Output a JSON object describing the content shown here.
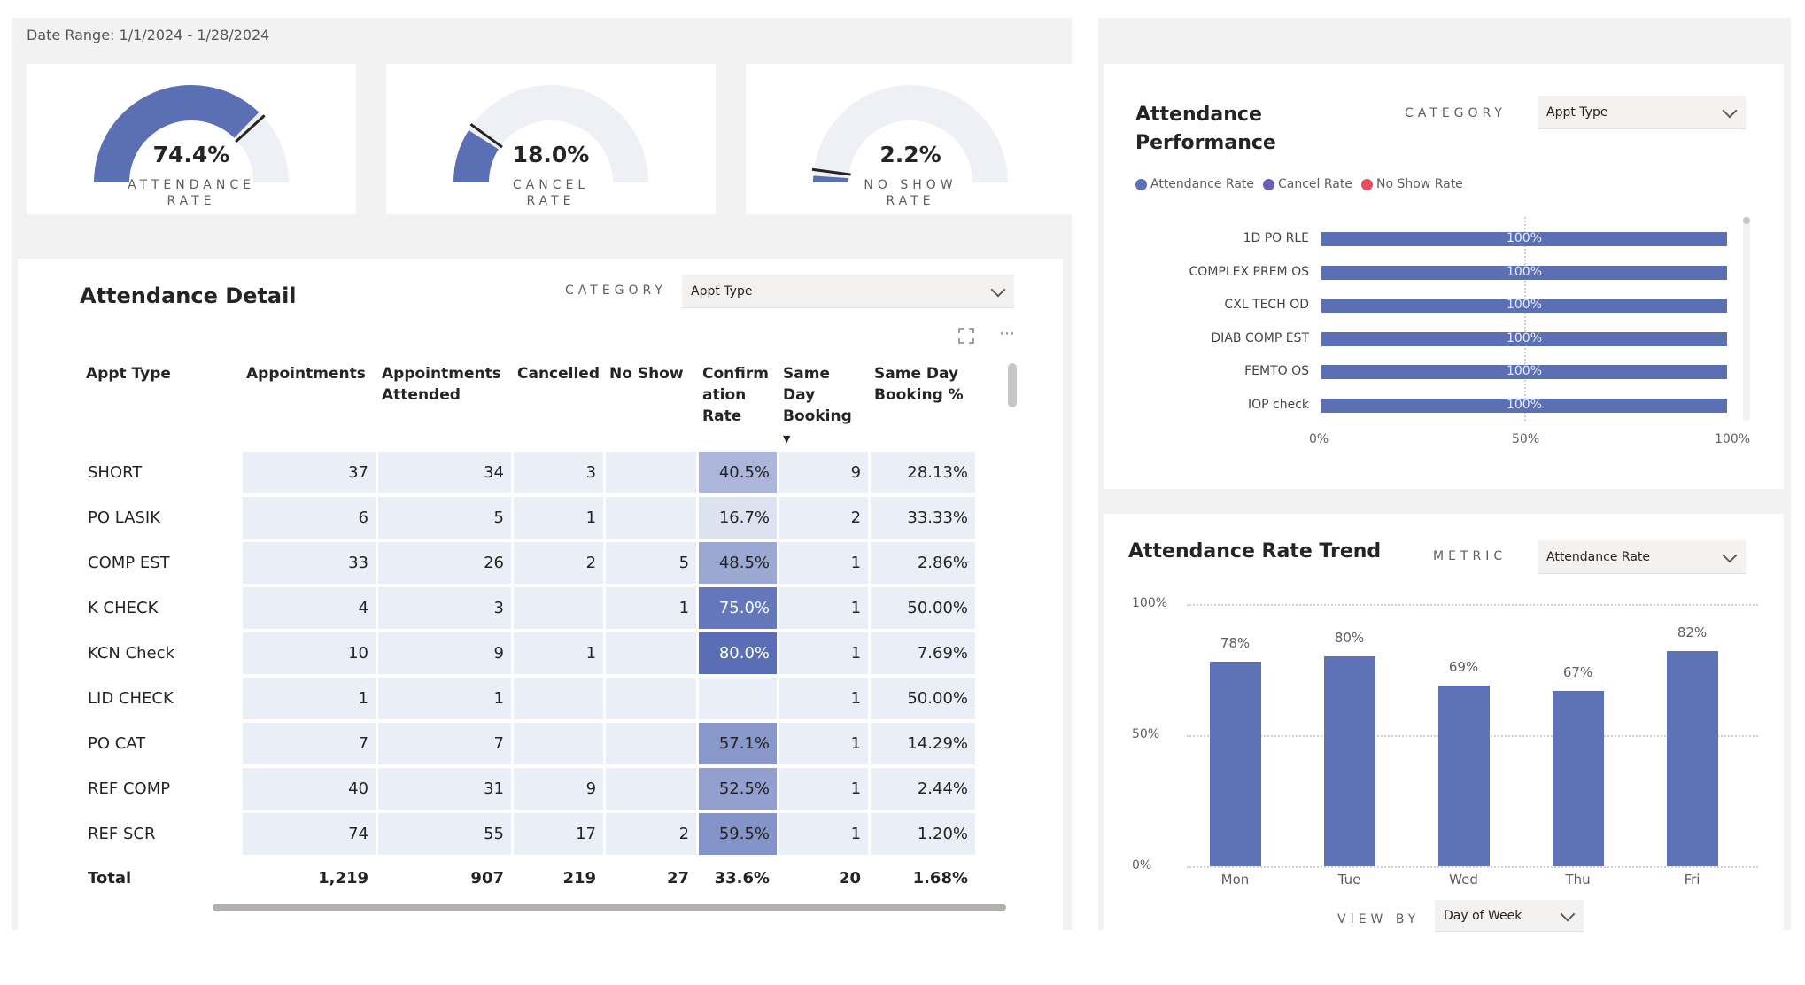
{
  "header": {
    "date_range": "Date Range: 1/1/2024 - 1/28/2024"
  },
  "kpis": [
    {
      "value": "74.4%",
      "label_line1": "ATTENDANCE",
      "label_line2": "RATE",
      "fraction": 0.744,
      "color": "#5b6fb5"
    },
    {
      "value": "18.0%",
      "label_line1": "CANCEL",
      "label_line2": "RATE",
      "fraction": 0.18,
      "color": "#5b6fb5"
    },
    {
      "value": "2.2%",
      "label_line1": "NO SHOW",
      "label_line2": "RATE",
      "fraction": 0.022,
      "color": "#5b6fb5"
    }
  ],
  "detail": {
    "title": "Attendance Detail",
    "category_label": "CATEGORY",
    "category_value": "Appt Type",
    "columns": [
      "Appt Type",
      "Appointments",
      "Appointments Attended",
      "Cancelled",
      "No Show",
      "Confirm ation Rate",
      "Same Day Booking",
      "Same Day Booking %"
    ],
    "rows": [
      {
        "type": "SHORT",
        "appts": "37",
        "attended": "34",
        "cancelled": "3",
        "noshow": "",
        "confirm": "40.5%",
        "confirm_level": 0.405,
        "sameday": "9",
        "sameday_pct": "28.13%"
      },
      {
        "type": "PO LASIK",
        "appts": "6",
        "attended": "5",
        "cancelled": "1",
        "noshow": "",
        "confirm": "16.7%",
        "confirm_level": 0.167,
        "sameday": "2",
        "sameday_pct": "33.33%"
      },
      {
        "type": "COMP EST",
        "appts": "33",
        "attended": "26",
        "cancelled": "2",
        "noshow": "5",
        "confirm": "48.5%",
        "confirm_level": 0.485,
        "sameday": "1",
        "sameday_pct": "2.86%"
      },
      {
        "type": "K CHECK",
        "appts": "4",
        "attended": "3",
        "cancelled": "",
        "noshow": "1",
        "confirm": "75.0%",
        "confirm_level": 0.75,
        "sameday": "1",
        "sameday_pct": "50.00%"
      },
      {
        "type": "KCN Check",
        "appts": "10",
        "attended": "9",
        "cancelled": "1",
        "noshow": "",
        "confirm": "80.0%",
        "confirm_level": 0.8,
        "sameday": "1",
        "sameday_pct": "7.69%"
      },
      {
        "type": "LID CHECK",
        "appts": "1",
        "attended": "1",
        "cancelled": "",
        "noshow": "",
        "confirm": "",
        "confirm_level": 0,
        "sameday": "1",
        "sameday_pct": "50.00%"
      },
      {
        "type": "PO CAT",
        "appts": "7",
        "attended": "7",
        "cancelled": "",
        "noshow": "",
        "confirm": "57.1%",
        "confirm_level": 0.571,
        "sameday": "1",
        "sameday_pct": "14.29%"
      },
      {
        "type": "REF COMP",
        "appts": "40",
        "attended": "31",
        "cancelled": "9",
        "noshow": "",
        "confirm": "52.5%",
        "confirm_level": 0.525,
        "sameday": "1",
        "sameday_pct": "2.44%"
      },
      {
        "type": "REF SCR",
        "appts": "74",
        "attended": "55",
        "cancelled": "17",
        "noshow": "2",
        "confirm": "59.5%",
        "confirm_level": 0.595,
        "sameday": "1",
        "sameday_pct": "1.20%"
      }
    ],
    "total": {
      "type": "Total",
      "appts": "1,219",
      "attended": "907",
      "cancelled": "219",
      "noshow": "27",
      "confirm": "33.6%",
      "sameday": "20",
      "sameday_pct": "1.68%"
    }
  },
  "performance": {
    "title_line1": "Attendance",
    "title_line2": "Performance",
    "category_label": "CATEGORY",
    "category_value": "Appt Type",
    "legend": [
      {
        "name": "Attendance Rate",
        "color": "#5b6fb5"
      },
      {
        "name": "Cancel Rate",
        "color": "#6b5fb5"
      },
      {
        "name": "No Show Rate",
        "color": "#e64d5f"
      }
    ]
  },
  "trend": {
    "title": "Attendance Rate Trend",
    "metric_label": "METRIC",
    "metric_value": "Attendance Rate",
    "view_by_label": "VIEW BY",
    "view_by_value": "Day of Week"
  },
  "chart_data": [
    {
      "type": "bar",
      "orientation": "horizontal",
      "categories": [
        "1D PO RLE",
        "COMPLEX PREM OS",
        "CXL TECH OD",
        "DIAB COMP EST",
        "FEMTO OS",
        "IOP check"
      ],
      "series": [
        {
          "name": "Attendance Rate",
          "values": [
            100,
            100,
            100,
            100,
            100,
            100
          ]
        }
      ],
      "value_labels": [
        "100%",
        "100%",
        "100%",
        "100%",
        "100%",
        "100%"
      ],
      "xlim": [
        0,
        100
      ],
      "x_ticks": [
        "0%",
        "50%",
        "100%"
      ]
    },
    {
      "type": "bar",
      "categories": [
        "Mon",
        "Tue",
        "Wed",
        "Thu",
        "Fri"
      ],
      "values": [
        78,
        80,
        69,
        67,
        82
      ],
      "value_labels": [
        "78%",
        "80%",
        "69%",
        "67%",
        "82%"
      ],
      "ylim": [
        0,
        100
      ],
      "y_ticks": [
        "100%",
        "50%",
        "0%"
      ],
      "grid": true
    }
  ]
}
